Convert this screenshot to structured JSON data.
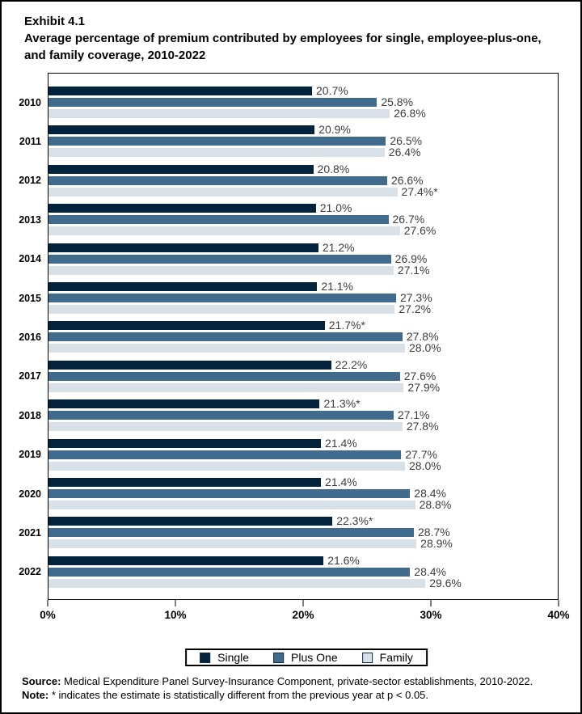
{
  "title": {
    "exhibit": "Exhibit 4.1",
    "subtitle": "Average percentage of premium contributed by employees for single, employee-plus-one, and family coverage, 2010-2022"
  },
  "chart_data": {
    "type": "bar",
    "orientation": "horizontal",
    "title": "Average percentage of premium contributed by employees for single, employee-plus-one, and family coverage, 2010-2022",
    "categories": [
      "2010",
      "2011",
      "2012",
      "2013",
      "2014",
      "2015",
      "2016",
      "2017",
      "2018",
      "2019",
      "2020",
      "2021",
      "2022"
    ],
    "series": [
      {
        "name": "Single",
        "color": "#03223c",
        "values": [
          20.7,
          20.9,
          20.8,
          21.0,
          21.2,
          21.1,
          21.7,
          22.2,
          21.3,
          21.4,
          21.4,
          22.3,
          21.6
        ],
        "labels": [
          "20.7%",
          "20.9%",
          "20.8%",
          "21.0%",
          "21.2%",
          "21.1%",
          "21.7%*",
          "22.2%",
          "21.3%*",
          "21.4%",
          "21.4%",
          "22.3%*",
          "21.6%"
        ]
      },
      {
        "name": "Plus One",
        "color": "#406b8d",
        "values": [
          25.8,
          26.5,
          26.6,
          26.7,
          26.9,
          27.3,
          27.8,
          27.6,
          27.1,
          27.7,
          28.4,
          28.7,
          28.4
        ],
        "labels": [
          "25.8%",
          "26.5%",
          "26.6%",
          "26.7%",
          "26.9%",
          "27.3%",
          "27.8%",
          "27.6%",
          "27.1%",
          "27.7%",
          "28.4%",
          "28.7%",
          "28.4%"
        ]
      },
      {
        "name": "Family",
        "color": "#d8e0e8",
        "values": [
          26.8,
          26.4,
          27.4,
          27.6,
          27.1,
          27.2,
          28.0,
          27.9,
          27.8,
          28.0,
          28.8,
          28.9,
          29.6
        ],
        "labels": [
          "26.8%",
          "26.4%",
          "27.4%*",
          "27.6%",
          "27.1%",
          "27.2%",
          "28.0%",
          "27.9%",
          "27.8%",
          "28.0%",
          "28.8%",
          "28.9%",
          "29.6%"
        ]
      }
    ],
    "x_axis": {
      "min": 0,
      "max": 40,
      "ticks": [
        "0%",
        "10%",
        "20%",
        "30%",
        "40%"
      ]
    },
    "grid": false,
    "legend_position": "bottom"
  },
  "footer": {
    "source_label": "Source:",
    "source_text": " Medical Expenditure Panel Survey-Insurance Component, private-sector establishments, 2010-2022.",
    "note_label": "Note:",
    "note_text": " * indicates the estimate is statistically different from the previous year at p < 0.05."
  }
}
